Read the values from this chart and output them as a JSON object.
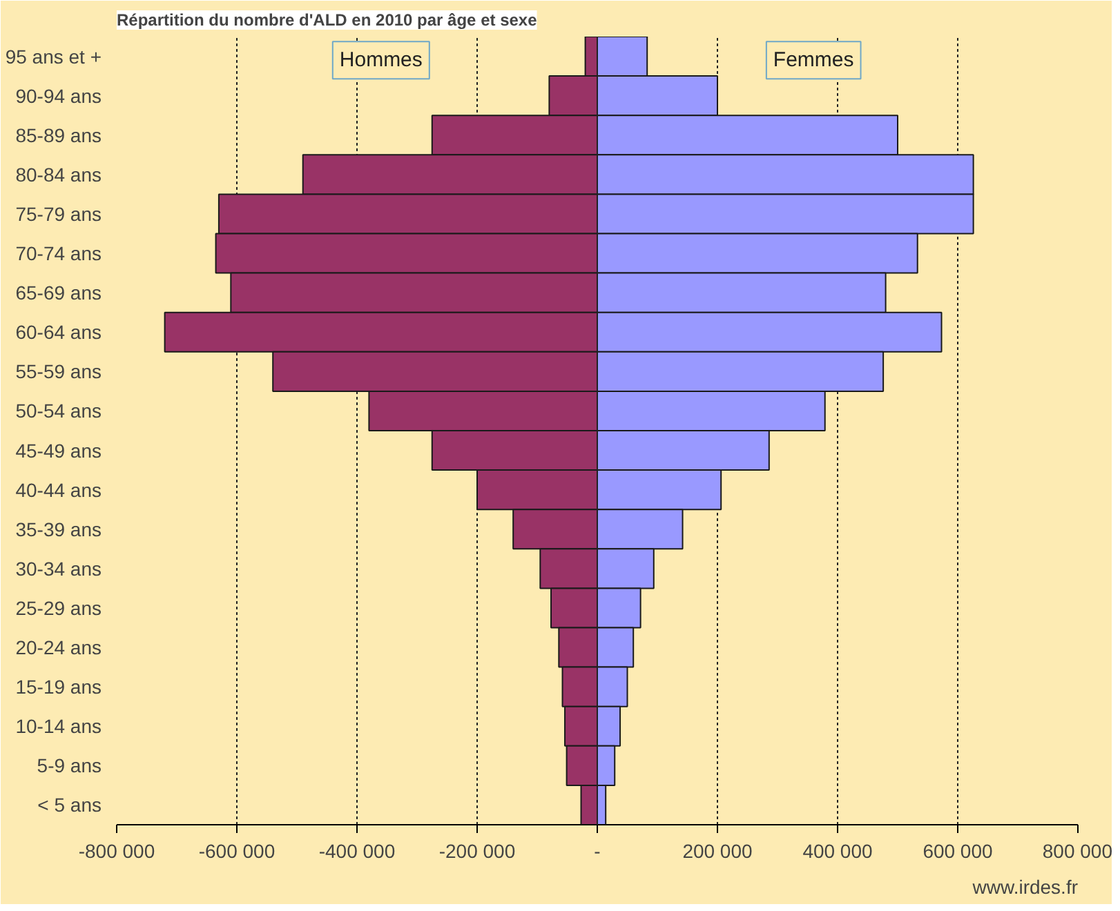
{
  "chart_data": {
    "type": "bar",
    "orientation": "horizontal",
    "title": "Répartition du nombre d'ALD en 2010 par âge et sexe",
    "categories": [
      "95 ans et +",
      "90-94 ans",
      "85-89 ans",
      "80-84 ans",
      "75-79 ans",
      "70-74 ans",
      "65-69 ans",
      "60-64 ans",
      "55-59 ans",
      "50-54 ans",
      "45-49 ans",
      "40-44 ans",
      "35-39 ans",
      "30-34 ans",
      "25-29 ans",
      "20-24 ans",
      "15-19 ans",
      "10-14 ans",
      "5-9 ans",
      "< 5 ans"
    ],
    "series": [
      {
        "name": "Hommes",
        "color": "#993366",
        "values": [
          -20000,
          -80000,
          -275000,
          -490000,
          -630000,
          -635000,
          -610000,
          -720000,
          -540000,
          -380000,
          -275000,
          -200000,
          -140000,
          -95000,
          -77000,
          -64000,
          -58000,
          -54000,
          -51000,
          -27000
        ]
      },
      {
        "name": "Femmes",
        "color": "#9999ff",
        "values": [
          83000,
          200000,
          500000,
          626000,
          626000,
          533000,
          480000,
          573000,
          476000,
          379000,
          286000,
          206000,
          142000,
          94000,
          72000,
          60000,
          50000,
          38000,
          29000,
          14000
        ]
      }
    ],
    "xlim": [
      -800000,
      800000
    ],
    "xticks": [
      {
        "value": -800000,
        "label": "-800 000"
      },
      {
        "value": -600000,
        "label": "-600 000"
      },
      {
        "value": -400000,
        "label": "-400 000"
      },
      {
        "value": -200000,
        "label": "-200 000"
      },
      {
        "value": 0,
        "label": "-"
      },
      {
        "value": 200000,
        "label": "200 000"
      },
      {
        "value": 400000,
        "label": "400 000"
      },
      {
        "value": 600000,
        "label": "600 000"
      },
      {
        "value": 800000,
        "label": "800 000"
      }
    ],
    "grid": "x",
    "stacked": true,
    "annotations": [
      "www.irdes.fr"
    ]
  }
}
